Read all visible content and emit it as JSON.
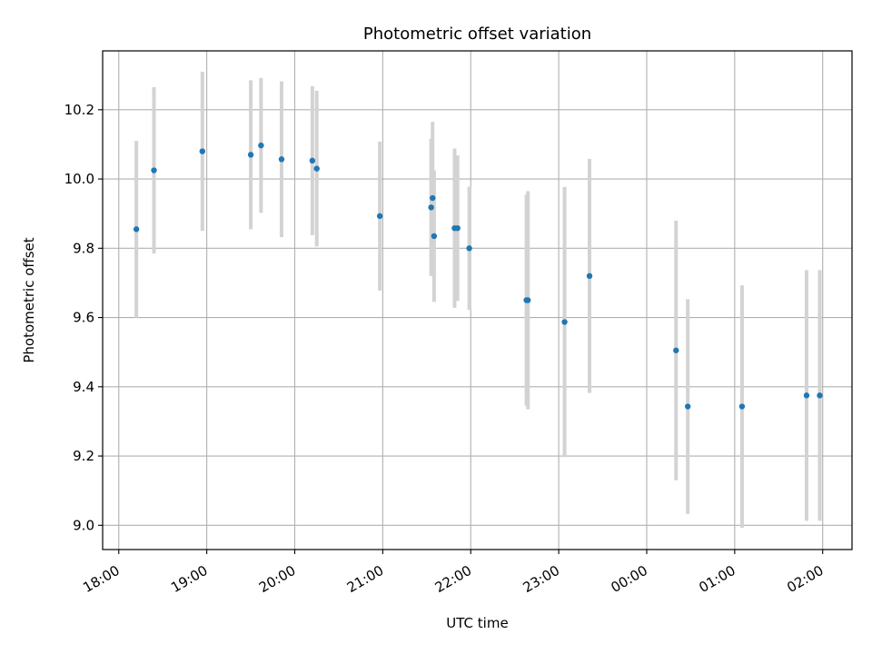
{
  "chart_data": {
    "type": "scatter",
    "title": "Photometric offset variation",
    "xlabel": "UTC time",
    "ylabel": "Photometric offset",
    "x_axis_type": "time",
    "xlim": [
      "17:49",
      "02:20"
    ],
    "ylim": [
      8.93,
      10.37
    ],
    "grid": true,
    "x_ticks": [
      "18:00",
      "19:00",
      "20:00",
      "21:00",
      "22:00",
      "23:00",
      "00:00",
      "01:00",
      "02:00"
    ],
    "y_ticks": [
      "9.0",
      "9.2",
      "9.4",
      "9.6",
      "9.8",
      "10.0",
      "10.2"
    ],
    "colors": {
      "point": "#1f77b4",
      "errorbar": "#d3d3d3",
      "grid": "#b0b0b0"
    },
    "points": [
      {
        "x": "18:12",
        "y": 9.855,
        "yerr": 0.255
      },
      {
        "x": "18:24",
        "y": 10.025,
        "yerr": 0.24
      },
      {
        "x": "18:57",
        "y": 10.08,
        "yerr": 0.23
      },
      {
        "x": "19:30",
        "y": 10.07,
        "yerr": 0.215
      },
      {
        "x": "19:37",
        "y": 10.097,
        "yerr": 0.195
      },
      {
        "x": "19:51",
        "y": 10.057,
        "yerr": 0.225
      },
      {
        "x": "20:12",
        "y": 10.053,
        "yerr": 0.215
      },
      {
        "x": "20:15",
        "y": 10.03,
        "yerr": 0.225
      },
      {
        "x": "20:58",
        "y": 9.893,
        "yerr": 0.215
      },
      {
        "x": "21:33",
        "y": 9.918,
        "yerr": 0.198
      },
      {
        "x": "21:34",
        "y": 9.945,
        "yerr": 0.22
      },
      {
        "x": "21:35",
        "y": 9.835,
        "yerr": 0.19
      },
      {
        "x": "21:49",
        "y": 9.858,
        "yerr": 0.23
      },
      {
        "x": "21:51",
        "y": 9.858,
        "yerr": 0.21
      },
      {
        "x": "21:59",
        "y": 9.8,
        "yerr": 0.178
      },
      {
        "x": "22:38",
        "y": 9.65,
        "yerr": 0.305
      },
      {
        "x": "22:39",
        "y": 9.65,
        "yerr": 0.315
      },
      {
        "x": "23:04",
        "y": 9.587,
        "yerr": 0.39
      },
      {
        "x": "23:21",
        "y": 9.72,
        "yerr": 0.338
      },
      {
        "x": "00:20",
        "y": 9.505,
        "yerr": 0.375
      },
      {
        "x": "00:28",
        "y": 9.343,
        "yerr": 0.31
      },
      {
        "x": "01:05",
        "y": 9.343,
        "yerr": 0.35
      },
      {
        "x": "01:49",
        "y": 9.375,
        "yerr": 0.362
      },
      {
        "x": "01:58",
        "y": 9.375,
        "yerr": 0.362
      }
    ]
  }
}
